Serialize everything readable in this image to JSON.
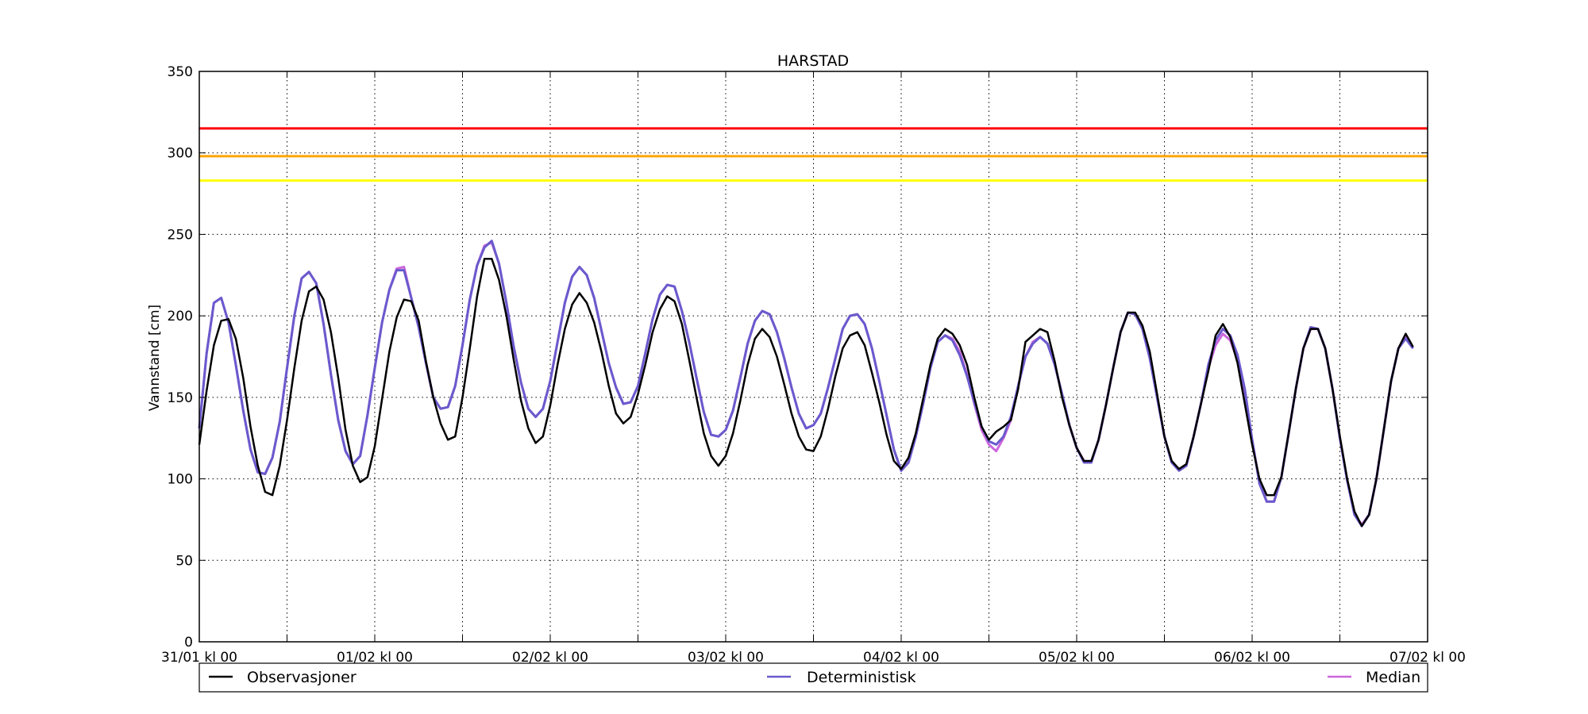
{
  "chart_data": {
    "type": "line",
    "title": "HARSTAD",
    "ylabel": "Vannstand [cm]",
    "xlabel": "",
    "ylim": [
      0,
      350
    ],
    "yticks": [
      0,
      50,
      100,
      150,
      200,
      250,
      300,
      350
    ],
    "xlim": [
      "2015-01-31T00:00",
      "2015-02-07T00:00"
    ],
    "xticks": [
      "31/01 kl 00",
      "",
      "01/02 kl 00",
      "",
      "02/02 kl 00",
      "",
      "03/02 kl 00",
      "",
      "04/02 kl 00",
      "",
      "05/02 kl 00",
      "",
      "06/02 kl 00",
      "",
      "07/02 kl 00"
    ],
    "x_step_hours": 1,
    "grid": true,
    "legend_position": "bottom",
    "thresholds": [
      {
        "value": 315,
        "color": "#ff0000"
      },
      {
        "value": 298,
        "color": "#ffa500"
      },
      {
        "value": 283,
        "color": "#ffff00"
      }
    ],
    "series": [
      {
        "name": "Observasjoner",
        "color": "#000000",
        "values": [
          121,
          154,
          182,
          197,
          198,
          186,
          162,
          132,
          108,
          92,
          90,
          108,
          136,
          168,
          197,
          215,
          218,
          210,
          190,
          162,
          130,
          108,
          98,
          101,
          120,
          149,
          178,
          199,
          210,
          209,
          197,
          172,
          150,
          134,
          124,
          126,
          150,
          180,
          212,
          235,
          235,
          222,
          200,
          173,
          148,
          131,
          122,
          126,
          145,
          170,
          192,
          207,
          214,
          208,
          196,
          178,
          157,
          140,
          134,
          138,
          152,
          170,
          190,
          204,
          212,
          209,
          195,
          173,
          150,
          128,
          114,
          108,
          114,
          128,
          148,
          170,
          186,
          192,
          187,
          175,
          158,
          140,
          126,
          118,
          117,
          126,
          143,
          163,
          180,
          188,
          190,
          182,
          165,
          147,
          127,
          111,
          106,
          113,
          128,
          149,
          170,
          186,
          192,
          189,
          182,
          170,
          150,
          132,
          124,
          129,
          132,
          136,
          155,
          184,
          188,
          192,
          190,
          172,
          150,
          133,
          119,
          111,
          111,
          124,
          145,
          168,
          190,
          202,
          202,
          194,
          178,
          152,
          126,
          111,
          106,
          109,
          126,
          146,
          166,
          188,
          195,
          187,
          171,
          146,
          121,
          100,
          90,
          90,
          101,
          128,
          156,
          180,
          192,
          192,
          180,
          155,
          126,
          100,
          80,
          71,
          78,
          100,
          130,
          160,
          180,
          189,
          181
        ]
      },
      {
        "name": "Deterministisk",
        "color": "#6a5acd",
        "values": [
          131,
          177,
          208,
          211,
          196,
          170,
          142,
          118,
          104,
          103,
          113,
          135,
          168,
          200,
          223,
          227,
          220,
          195,
          164,
          136,
          117,
          109,
          114,
          139,
          168,
          196,
          216,
          228,
          228,
          211,
          193,
          171,
          150,
          143,
          144,
          157,
          182,
          210,
          231,
          242,
          246,
          232,
          208,
          181,
          159,
          143,
          138,
          143,
          160,
          184,
          208,
          224,
          230,
          225,
          211,
          191,
          171,
          156,
          146,
          147,
          157,
          177,
          198,
          213,
          219,
          218,
          203,
          184,
          162,
          141,
          127,
          126,
          130,
          142,
          162,
          183,
          197,
          203,
          201,
          190,
          174,
          156,
          140,
          131,
          133,
          140,
          156,
          174,
          192,
          200,
          201,
          195,
          180,
          160,
          139,
          118,
          105,
          110,
          126,
          146,
          168,
          184,
          188,
          185,
          176,
          163,
          147,
          132,
          123,
          121,
          126,
          138,
          157,
          175,
          183,
          187,
          183,
          170,
          152,
          133,
          119,
          110,
          110,
          124,
          145,
          168,
          190,
          202,
          201,
          192,
          174,
          150,
          126,
          110,
          105,
          108,
          126,
          146,
          170,
          185,
          192,
          188,
          176,
          155,
          124,
          97,
          86,
          86,
          101,
          128,
          156,
          180,
          193,
          192,
          180,
          155,
          125,
          99,
          78,
          71,
          78,
          100,
          130,
          160,
          180,
          186,
          180
        ]
      },
      {
        "name": "Median",
        "color": "#cc66dd",
        "values": [
          131,
          177,
          208,
          211,
          196,
          170,
          142,
          118,
          104,
          103,
          113,
          135,
          168,
          200,
          223,
          227,
          220,
          195,
          164,
          136,
          117,
          109,
          114,
          139,
          168,
          196,
          216,
          229,
          230,
          211,
          193,
          171,
          150,
          143,
          144,
          157,
          182,
          210,
          231,
          243,
          245,
          232,
          208,
          181,
          159,
          143,
          138,
          143,
          160,
          184,
          208,
          224,
          230,
          225,
          211,
          191,
          171,
          156,
          146,
          147,
          157,
          177,
          198,
          213,
          219,
          218,
          203,
          184,
          162,
          141,
          127,
          126,
          130,
          142,
          162,
          183,
          197,
          203,
          201,
          190,
          174,
          156,
          140,
          131,
          133,
          140,
          156,
          174,
          192,
          200,
          201,
          195,
          180,
          160,
          139,
          118,
          105,
          110,
          126,
          146,
          168,
          184,
          188,
          186,
          178,
          164,
          146,
          130,
          121,
          117,
          125,
          136,
          157,
          175,
          184,
          187,
          183,
          170,
          152,
          133,
          119,
          111,
          110,
          124,
          145,
          168,
          190,
          202,
          201,
          192,
          174,
          150,
          126,
          110,
          106,
          108,
          126,
          146,
          168,
          182,
          189,
          185,
          173,
          153,
          124,
          98,
          86,
          86,
          101,
          128,
          156,
          180,
          192,
          192,
          180,
          155,
          125,
          99,
          78,
          72,
          78,
          100,
          130,
          160,
          180,
          188,
          180
        ]
      }
    ]
  }
}
